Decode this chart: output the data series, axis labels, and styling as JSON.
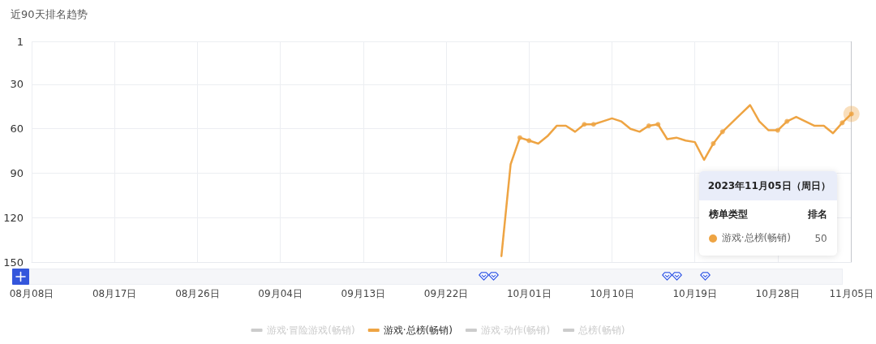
{
  "chart_data": {
    "type": "line",
    "title": "近90天排名趋势",
    "xlim": [
      "2023-08-08",
      "2023-11-05"
    ],
    "xticks": [
      {
        "value": "2023-08-08",
        "label": "08月08日"
      },
      {
        "value": "2023-08-17",
        "label": "08月17日"
      },
      {
        "value": "2023-08-26",
        "label": "08月26日"
      },
      {
        "value": "2023-09-04",
        "label": "09月04日"
      },
      {
        "value": "2023-09-13",
        "label": "09月13日"
      },
      {
        "value": "2023-09-22",
        "label": "09月22日"
      },
      {
        "value": "2023-10-01",
        "label": "10月01日"
      },
      {
        "value": "2023-10-10",
        "label": "10月10日"
      },
      {
        "value": "2023-10-19",
        "label": "10月19日"
      },
      {
        "value": "2023-10-28",
        "label": "10月28日"
      },
      {
        "value": "2023-11-05",
        "label": "11月05日"
      }
    ],
    "ylim": [
      150,
      1
    ],
    "yticks": [
      1,
      30,
      60,
      90,
      120,
      150
    ],
    "grid": true,
    "legend": "bottom",
    "series": [
      {
        "name": "游戏·冒险游戏(畅销)",
        "color": "#cccccc"
      },
      {
        "name": "游戏·总榜(畅销)",
        "color": "#eea443",
        "marker": "none",
        "x": [
          "2023-09-28",
          "2023-09-29",
          "2023-09-30",
          "2023-10-01",
          "2023-10-02",
          "2023-10-03",
          "2023-10-04",
          "2023-10-05",
          "2023-10-06",
          "2023-10-07",
          "2023-10-08",
          "2023-10-09",
          "2023-10-10",
          "2023-10-11",
          "2023-10-12",
          "2023-10-13",
          "2023-10-14",
          "2023-10-15",
          "2023-10-16",
          "2023-10-17",
          "2023-10-18",
          "2023-10-19",
          "2023-10-20",
          "2023-10-21",
          "2023-10-22",
          "2023-10-23",
          "2023-10-24",
          "2023-10-25",
          "2023-10-26",
          "2023-10-27",
          "2023-10-28",
          "2023-10-29",
          "2023-10-30",
          "2023-10-31",
          "2023-11-01",
          "2023-11-02",
          "2023-11-03",
          "2023-11-04",
          "2023-11-05"
        ],
        "values": [
          146,
          84,
          66,
          68,
          70,
          65,
          58,
          58,
          62,
          57,
          57,
          55,
          53,
          55,
          60,
          62,
          58,
          57,
          67,
          66,
          68,
          69,
          81,
          70,
          62,
          56,
          50,
          44,
          55,
          61,
          61,
          55,
          52,
          55,
          58,
          58,
          63,
          56,
          50
        ]
      },
      {
        "name": "游戏·动作(畅销)",
        "color": "#cccccc"
      },
      {
        "name": "总榜(畅销)",
        "color": "#cccccc"
      },
      {
        "type": "scatter",
        "color": "#eea443",
        "marker": "circle",
        "x": [
          "2023-09-30",
          "2023-10-01",
          "2023-10-07",
          "2023-10-08",
          "2023-10-14",
          "2023-10-15",
          "2023-10-21",
          "2023-10-22",
          "2023-10-28",
          "2023-10-29",
          "2023-11-04",
          "2023-11-05"
        ],
        "values": [
          66,
          68,
          57,
          57,
          58,
          57,
          70,
          62,
          61,
          55,
          56,
          50
        ]
      }
    ],
    "annotations": [
      "2023年11月05日（周日）",
      "榜单类型",
      "排名",
      "50"
    ]
  }
}
